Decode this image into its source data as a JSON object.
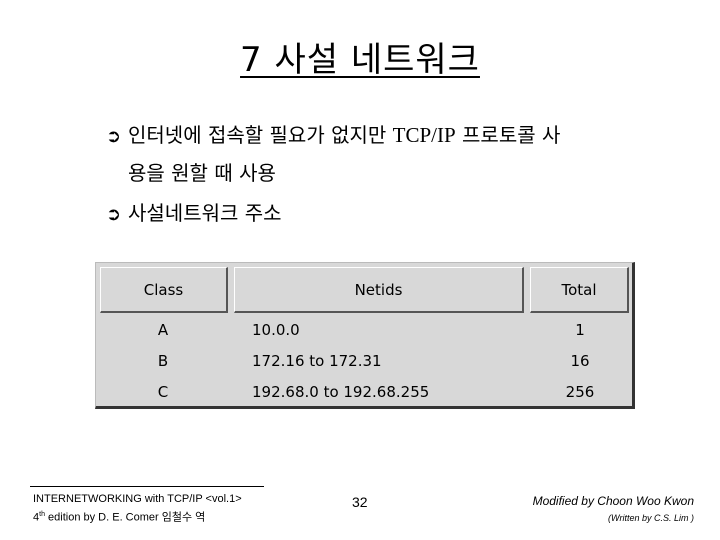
{
  "title": "7 사설 네트워크",
  "bullets": {
    "arrow": "➲",
    "b1_line1_a": "인터넷에 접속할 필요가 없지만 ",
    "b1_line1_b": "TCP/IP",
    "b1_line1_c": " 프로토콜 사",
    "b1_line2": "용을 원할 때 사용",
    "b2": "사설네트워크 주소"
  },
  "table": {
    "headers": [
      "Class",
      "Netids",
      "Total"
    ],
    "rows": [
      {
        "class": "A",
        "netids": "10.0.0",
        "total": "1"
      },
      {
        "class": "B",
        "netids": "172.16 to 172.31",
        "total": "16"
      },
      {
        "class": "C",
        "netids": "192.68.0 to 192.68.255",
        "total": "256"
      }
    ]
  },
  "footer": {
    "left_line1": "INTERNETWORKING with TCP/IP <vol.1>",
    "left_line2_num": "4",
    "left_line2_sup": "th",
    "left_line2_rest": " edition by D. E. Comer 임철수 역",
    "page_number": "32",
    "right_line1": "Modified by Choon Woo Kwon",
    "right_line2": "(Written by C.S. Lim )"
  }
}
